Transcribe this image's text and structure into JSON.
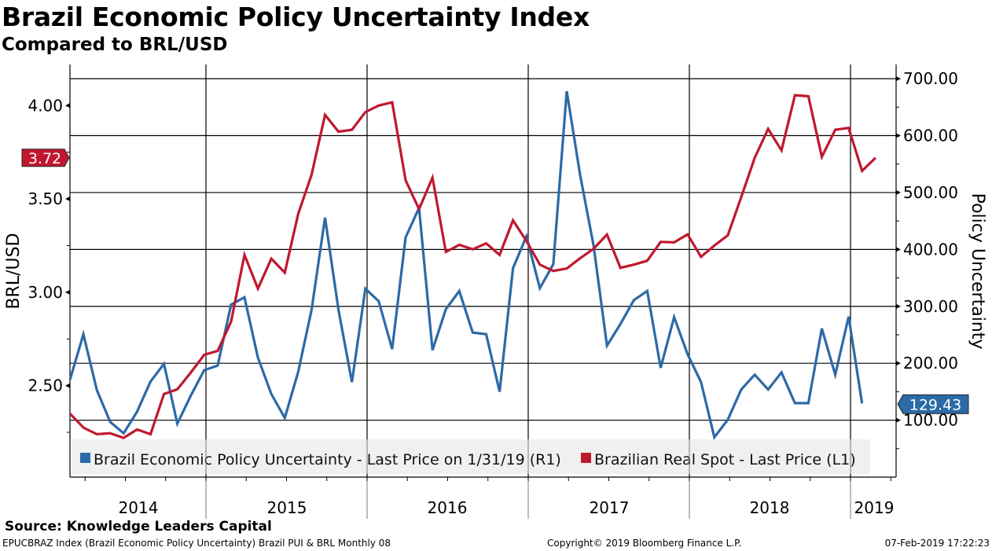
{
  "header": {
    "title": "Brazil Economic Policy Uncertainty Index",
    "subtitle": "Compared to BRL/USD"
  },
  "footer": {
    "source": "Source: Knowledge Leaders Capital",
    "description": "EPUCBRAZ Index (Brazil Economic Policy Uncertainty) Brazil PUI & BRL  Monthly 08",
    "copyright": "Copyright© 2019 Bloomberg Finance L.P.",
    "timestamp": "07-Feb-2019 17:22:23"
  },
  "chart_data": {
    "type": "line",
    "title": "Brazil Economic Policy Uncertainty Index",
    "subtitle": "Compared to BRL/USD",
    "xlabel": "",
    "x_start": "2014-02",
    "x_frequency": "monthly",
    "x_tick_labels": [
      "2014",
      "2015",
      "2016",
      "2017",
      "2018",
      "2019"
    ],
    "grid": true,
    "legend_position": "bottom",
    "left_axis": {
      "label": "BRL/USD",
      "range": [
        2.01,
        4.22
      ],
      "ticks": [
        "2.50",
        "3.00",
        "3.50",
        "4.00"
      ],
      "tick_values": [
        2.5,
        3.0,
        3.5,
        4.0
      ]
    },
    "right_axis": {
      "label": "Policy Uncertainty",
      "range": [
        0,
        725
      ],
      "ticks": [
        "100.00",
        "200.00",
        "300.00",
        "400.00",
        "500.00",
        "600.00",
        "700.00"
      ],
      "tick_values": [
        100,
        200,
        300,
        400,
        500,
        600,
        700
      ]
    },
    "series": [
      {
        "name": "Brazil Economic Policy Uncertainty - Last Price on 1/31/19 (R1)",
        "axis": "right",
        "color": "#2c6aa6",
        "last_value_label": "129.43",
        "last_value": 129.43,
        "values": [
          171,
          251,
          153,
          97,
          77,
          115,
          168,
          199,
          94,
          143,
          188,
          196,
          303,
          316,
          210,
          146,
          104,
          185,
          294,
          456,
          294,
          167,
          331,
          309,
          225,
          421,
          473,
          223,
          295,
          327,
          254,
          251,
          150,
          367,
          423,
          332,
          374,
          678,
          531,
          407,
          231,
          269,
          311,
          327,
          192,
          281,
          216,
          167,
          70,
          101,
          154,
          180,
          154,
          184,
          130,
          130,
          261,
          180,
          282,
          129.43
        ]
      },
      {
        "name": "Brazilian Real Spot - Last Price (L1)",
        "axis": "left",
        "color": "#c0182f",
        "last_value_label": "3.72",
        "last_value": 3.72,
        "values": [
          2.35,
          2.275,
          2.24,
          2.245,
          2.22,
          2.265,
          2.24,
          2.455,
          2.48,
          2.57,
          2.665,
          2.686,
          2.843,
          3.2,
          3.02,
          3.18,
          3.105,
          3.42,
          3.63,
          3.95,
          3.86,
          3.87,
          3.965,
          4.0,
          4.017,
          3.6,
          3.445,
          3.614,
          3.216,
          3.254,
          3.23,
          3.262,
          3.2,
          3.385,
          3.275,
          3.148,
          3.114,
          3.127,
          3.182,
          3.233,
          3.309,
          3.131,
          3.148,
          3.169,
          3.27,
          3.267,
          3.31,
          3.19,
          3.25,
          3.305,
          3.51,
          3.72,
          3.875,
          3.76,
          4.055,
          4.05,
          3.725,
          3.87,
          3.88,
          3.65,
          3.72
        ]
      }
    ]
  }
}
